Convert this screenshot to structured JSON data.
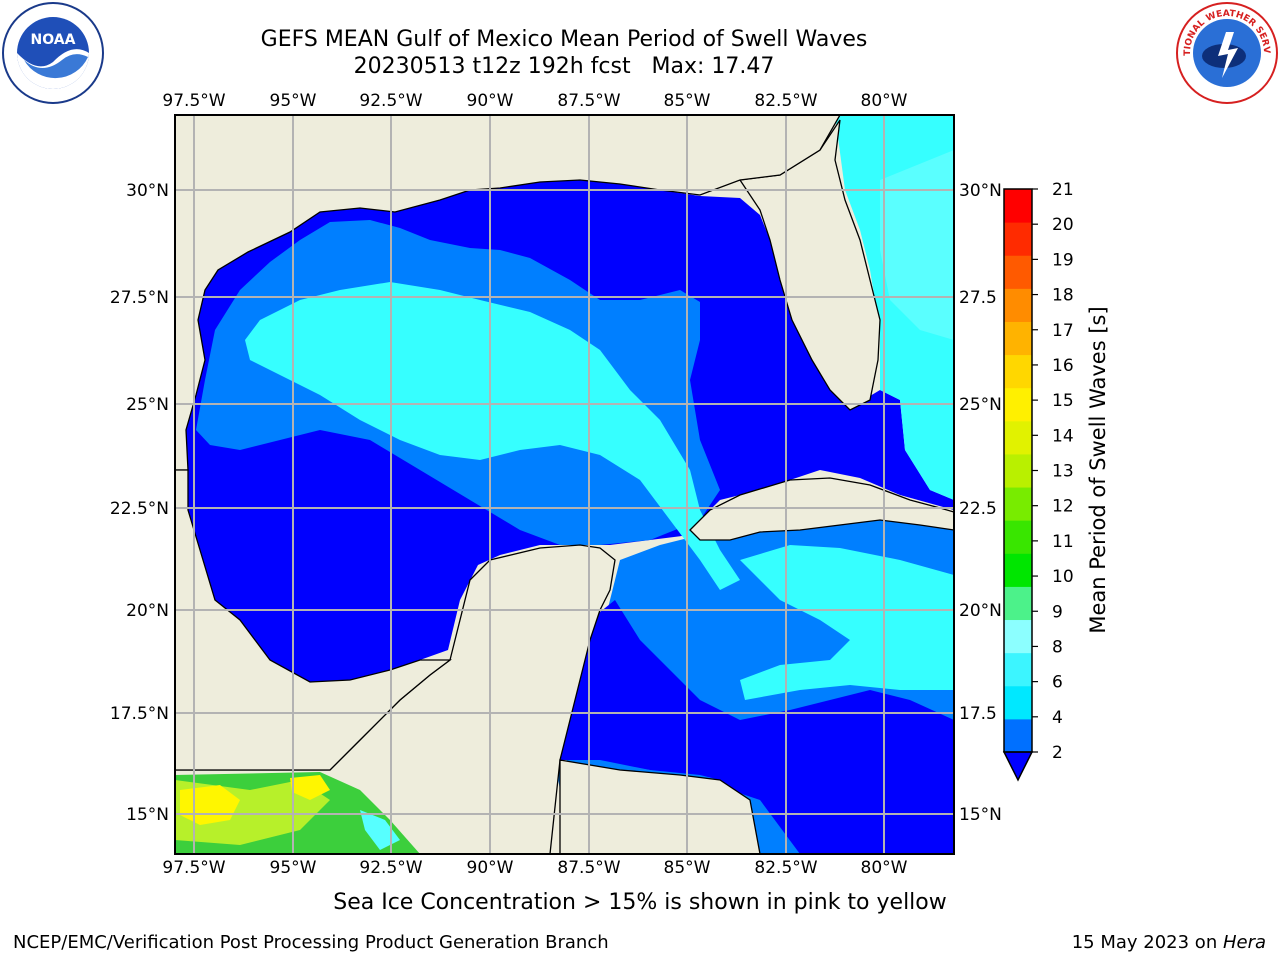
{
  "header": {
    "title_line1": "GEFS MEAN Gulf of Mexico Mean Period of Swell Waves",
    "title_line2": "20230513 t12z 192h fcst   Max: 17.47"
  },
  "map": {
    "lon_labels": [
      "97.5°W",
      "95°W",
      "92.5°W",
      "90°W",
      "87.5°W",
      "85°W",
      "82.5°W",
      "80°W"
    ],
    "lat_labels_left": [
      "30°N",
      "27.5°N",
      "25°N",
      "22.5°N",
      "20°N",
      "17.5°N",
      "15°N"
    ],
    "lat_labels_right": [
      "30°N",
      "27.5",
      "25°N",
      "22.5",
      "20°N",
      "17.5",
      "15°N"
    ],
    "colors": {
      "land": "#eeeddc",
      "deep_blue": "#0000ff",
      "mid_blue": "#007fff",
      "light_blue": "#36c8ff",
      "cyan": "#00ffff",
      "aqua": "#57ffff",
      "green": "#3ccf3c",
      "yellow_green": "#b7f02a",
      "yellow": "#fff600"
    }
  },
  "colorbar": {
    "label": "Mean Period of Swell Waves [s]",
    "tick_labels": [
      "2",
      "4",
      "6",
      "8",
      "9",
      "10",
      "11",
      "12",
      "13",
      "14",
      "15",
      "16",
      "17",
      "18",
      "19",
      "20",
      "21"
    ],
    "colors": [
      "#0070ff",
      "#00e8ff",
      "#3cf5ff",
      "#8cffff",
      "#4cf28a",
      "#00e600",
      "#39e600",
      "#78ec00",
      "#b9f000",
      "#e1f200",
      "#fff000",
      "#ffd700",
      "#ffb300",
      "#ff8c00",
      "#ff5a00",
      "#ff2b00",
      "#ff0000"
    ],
    "extend_color": "#0000ff"
  },
  "notes": {
    "ice": "Sea Ice Concentration > 15% is shown in pink to yellow"
  },
  "footer": {
    "left": "NCEP/EMC/Verification Post Processing Product Generation Branch",
    "date": "15 May 2023 on ",
    "host": "Hera"
  },
  "logos": {
    "noaa_text": "NOAA",
    "nws_text": "NATIONAL WEATHER SERVICE"
  }
}
